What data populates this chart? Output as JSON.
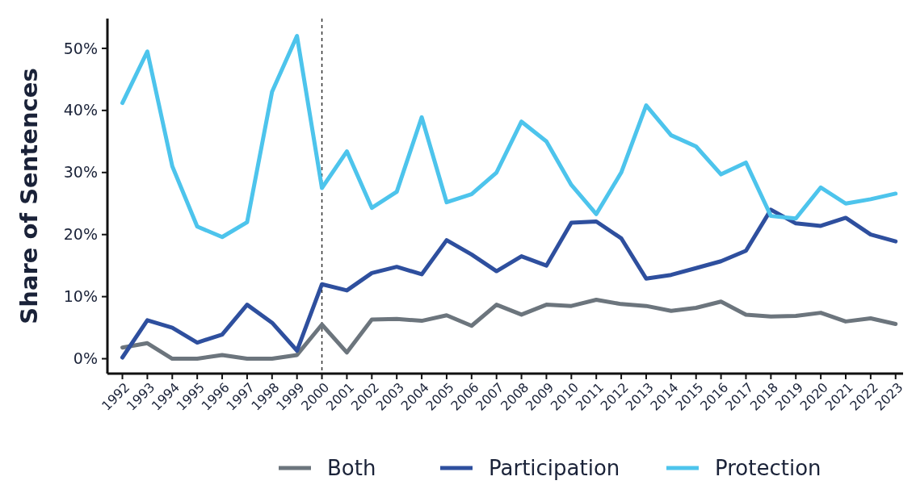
{
  "chart_data": {
    "type": "line",
    "ylabel": "Share of Sentences",
    "x": [
      1992,
      1993,
      1994,
      1995,
      1996,
      1997,
      1998,
      1999,
      2000,
      2001,
      2002,
      2003,
      2004,
      2005,
      2006,
      2007,
      2008,
      2009,
      2010,
      2011,
      2012,
      2013,
      2014,
      2015,
      2016,
      2017,
      2018,
      2019,
      2020,
      2021,
      2022,
      2023
    ],
    "xlim": [
      1991.4,
      2023.3
    ],
    "xticks": [
      1992,
      1993,
      1994,
      1995,
      1996,
      1997,
      1998,
      1999,
      2000,
      2001,
      2002,
      2003,
      2004,
      2005,
      2006,
      2007,
      2008,
      2009,
      2010,
      2011,
      2012,
      2013,
      2014,
      2015,
      2016,
      2017,
      2018,
      2019,
      2020,
      2021,
      2022,
      2023
    ],
    "ylim": [
      -2.4,
      54.8
    ],
    "yticks": [
      {
        "value": 0,
        "label": "0%"
      },
      {
        "value": 10,
        "label": "10%"
      },
      {
        "value": 20,
        "label": "20%"
      },
      {
        "value": 30,
        "label": "30%"
      },
      {
        "value": 40,
        "label": "40%"
      },
      {
        "value": 50,
        "label": "50%"
      }
    ],
    "series": [
      {
        "name": "Both",
        "color": "#6c757d",
        "values": [
          1.8,
          2.5,
          0,
          0,
          0.6,
          0,
          0,
          0.6,
          5.5,
          1,
          6.3,
          6.4,
          6.1,
          7,
          5.3,
          8.7,
          7.1,
          8.7,
          8.5,
          9.5,
          8.8,
          8.5,
          7.7,
          8.2,
          9.2,
          7.1,
          6.8,
          6.9,
          7.4,
          6,
          6.5,
          5.6
        ]
      },
      {
        "name": "Participation",
        "color": "#2e4f9e",
        "values": [
          0.2,
          6.2,
          5,
          2.6,
          3.9,
          8.7,
          5.8,
          1.3,
          12,
          11,
          13.8,
          14.8,
          13.6,
          19.1,
          16.8,
          14.1,
          16.5,
          15,
          21.9,
          22.1,
          19.4,
          12.9,
          13.5,
          14.6,
          15.7,
          17.4,
          24,
          21.8,
          21.4,
          22.7,
          20,
          18.9
        ]
      },
      {
        "name": "Protection",
        "color": "#4dc4ec",
        "values": [
          41.2,
          49.5,
          31,
          21.3,
          19.6,
          22,
          43,
          52,
          27.5,
          33.4,
          24.3,
          26.9,
          38.9,
          25.2,
          26.5,
          30,
          38.2,
          35,
          28,
          23.3,
          30,
          40.8,
          36,
          34.2,
          29.7,
          31.6,
          23,
          22.6,
          27.6,
          25,
          25.7,
          26.6
        ]
      }
    ],
    "ref_lines": [
      {
        "axis": "x",
        "value": 2000,
        "color": "#333333",
        "line_style": "dashed"
      }
    ],
    "legend": "bottom",
    "grid": false,
    "marker": "none",
    "line_style": "solid"
  }
}
